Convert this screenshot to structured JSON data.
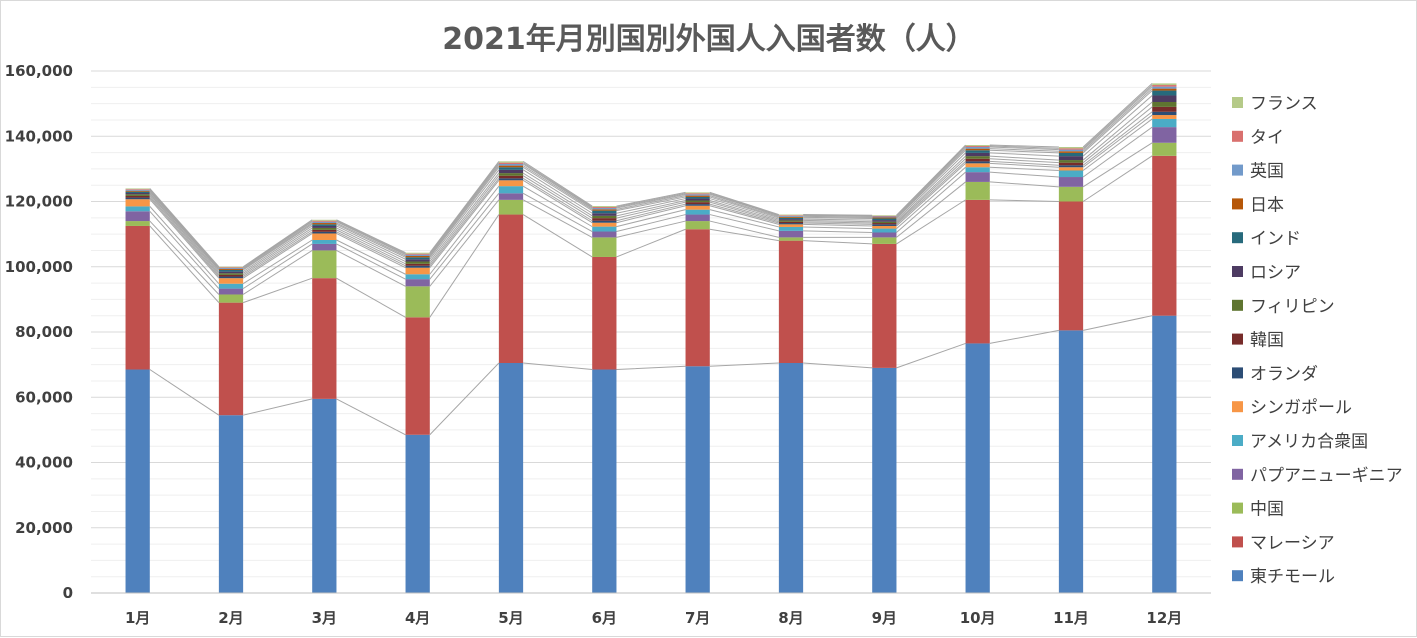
{
  "chart_data": {
    "type": "bar",
    "stacked": true,
    "title": "2021年月別国別外国人入国者数（人）",
    "xlabel": "",
    "ylabel": "",
    "ylim": [
      0,
      160000
    ],
    "y_ticks": [
      "0",
      "20,000",
      "40,000",
      "60,000",
      "80,000",
      "100,000",
      "120,000",
      "140,000",
      "160,000"
    ],
    "grid": true,
    "series_lines": true,
    "legend_position": "right",
    "categories": [
      "1月",
      "2月",
      "3月",
      "4月",
      "5月",
      "6月",
      "7月",
      "8月",
      "9月",
      "10月",
      "11月",
      "12月"
    ],
    "series": [
      {
        "name": "東チモール",
        "color": "#4f81bd",
        "values": [
          68500,
          54500,
          59500,
          48500,
          70500,
          68500,
          69500,
          70500,
          69000,
          76500,
          80500,
          85000
        ]
      },
      {
        "name": "マレーシア",
        "color": "#c0504d",
        "values": [
          44000,
          34500,
          37000,
          36000,
          45500,
          34500,
          42000,
          37500,
          38000,
          44000,
          39500,
          49000
        ]
      },
      {
        "name": "中国",
        "color": "#9bbb59",
        "values": [
          1500,
          2500,
          8500,
          9500,
          4500,
          6000,
          2500,
          1000,
          2000,
          5500,
          4500,
          4000
        ]
      },
      {
        "name": "パプアニューギニア",
        "color": "#8064a2",
        "values": [
          3000,
          1800,
          2000,
          2200,
          2000,
          1800,
          2000,
          2000,
          1500,
          3000,
          3000,
          4800
        ]
      },
      {
        "name": "アメリカ合衆国",
        "color": "#4bacc6",
        "values": [
          1500,
          1500,
          1200,
          1500,
          2200,
          1500,
          1500,
          1200,
          1200,
          1500,
          2000,
          2500
        ]
      },
      {
        "name": "シンガポール",
        "color": "#f79646",
        "values": [
          2200,
          1700,
          2000,
          2000,
          1800,
          1200,
          1200,
          800,
          800,
          1200,
          1000,
          1200
        ]
      },
      {
        "name": "オランダ",
        "color": "#2c4d75",
        "values": [
          500,
          500,
          500,
          600,
          600,
          600,
          500,
          400,
          500,
          600,
          600,
          1000
        ]
      },
      {
        "name": "韓国",
        "color": "#772c2a",
        "values": [
          500,
          500,
          600,
          600,
          800,
          800,
          600,
          400,
          400,
          800,
          800,
          1500
        ]
      },
      {
        "name": "フィリピン",
        "color": "#5f7530",
        "values": [
          500,
          500,
          600,
          700,
          800,
          700,
          500,
          400,
          400,
          800,
          800,
          1500
        ]
      },
      {
        "name": "ロシア",
        "color": "#4d3b62",
        "values": [
          400,
          500,
          600,
          700,
          1000,
          800,
          600,
          400,
          500,
          1000,
          1200,
          2000
        ]
      },
      {
        "name": "インド",
        "color": "#276a7c",
        "values": [
          400,
          500,
          500,
          600,
          800,
          800,
          500,
          400,
          500,
          800,
          1000,
          1500
        ]
      },
      {
        "name": "日本",
        "color": "#b65708",
        "values": [
          300,
          300,
          400,
          400,
          500,
          400,
          400,
          300,
          300,
          500,
          500,
          600
        ]
      },
      {
        "name": "英国",
        "color": "#729aca",
        "values": [
          300,
          300,
          400,
          400,
          500,
          400,
          400,
          300,
          300,
          500,
          500,
          600
        ]
      },
      {
        "name": "タイ",
        "color": "#d9706e",
        "values": [
          200,
          200,
          300,
          300,
          400,
          300,
          300,
          200,
          200,
          300,
          400,
          500
        ]
      },
      {
        "name": "フランス",
        "color": "#b5ca88",
        "values": [
          200,
          200,
          300,
          300,
          400,
          300,
          300,
          200,
          200,
          300,
          400,
          500
        ]
      }
    ]
  }
}
